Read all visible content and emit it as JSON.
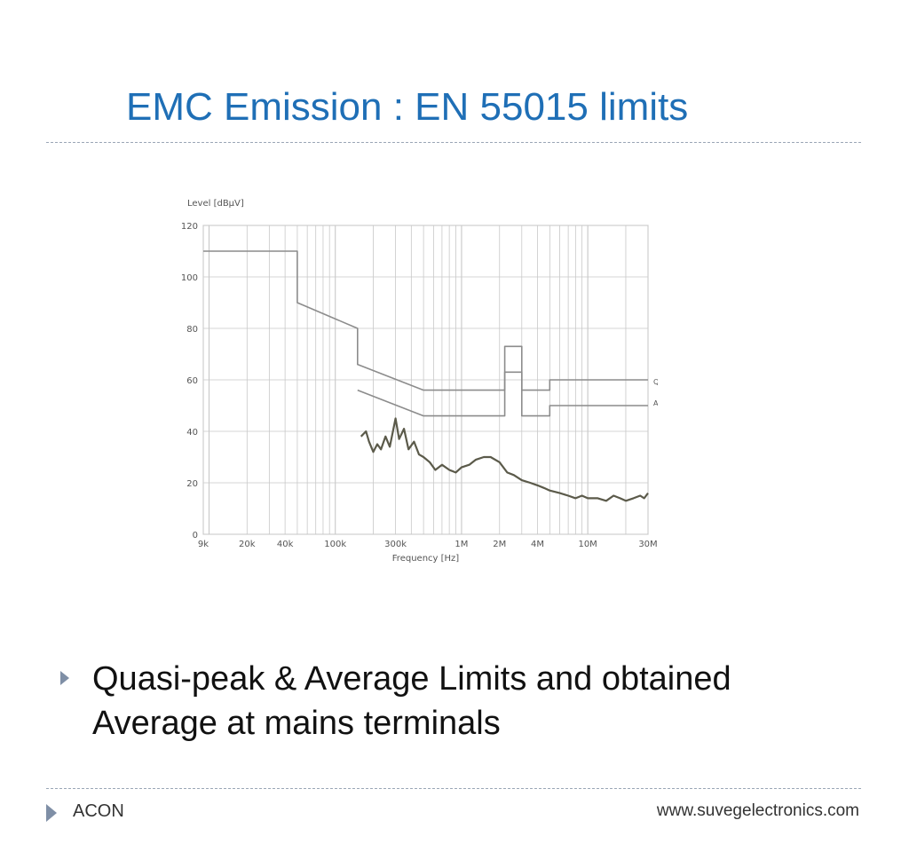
{
  "title": "EMC Emission : EN 55015 limits",
  "bullet": "Quasi-peak & Average Limits and obtained Average at mains terminals",
  "footer": {
    "left": "ACON",
    "right": "www.suvegelectronics.com"
  },
  "colors": {
    "title": "#1f6fb6",
    "limit_line": "#8c8c8c",
    "measurement": "#5b5a4a",
    "grid": "#c8c8c8",
    "bullet": "#7f8fa6"
  },
  "icons": {
    "bullet": "triangle-right-icon",
    "footer": "triangle-right-icon"
  },
  "chart_data": {
    "type": "line",
    "xscale": "log",
    "xlabel": "Frequency [Hz]",
    "ylabel": "Level [dBµV]",
    "xlim": [
      9000,
      30000000
    ],
    "ylim": [
      0,
      120
    ],
    "grid": true,
    "xticks": [
      {
        "value": 9000,
        "label": "9k"
      },
      {
        "value": 20000,
        "label": "20k"
      },
      {
        "value": 40000,
        "label": "40k"
      },
      {
        "value": 100000,
        "label": "100k"
      },
      {
        "value": 300000,
        "label": "300k"
      },
      {
        "value": 1000000,
        "label": "1M"
      },
      {
        "value": 2000000,
        "label": "2M"
      },
      {
        "value": 4000000,
        "label": "4M"
      },
      {
        "value": 10000000,
        "label": "10M"
      },
      {
        "value": 30000000,
        "label": "30M"
      }
    ],
    "yticks": [
      0,
      20,
      40,
      60,
      80,
      100,
      120
    ],
    "series": [
      {
        "name": "Q.P.LIMIT",
        "x": [
          9000,
          50000,
          50000,
          150000,
          150000,
          500000,
          2200000,
          2200000,
          3000000,
          3000000,
          5000000,
          5000000,
          30000000
        ],
        "y": [
          110,
          110,
          90,
          80,
          66,
          56,
          56,
          73,
          73,
          56,
          56,
          60,
          60
        ]
      },
      {
        "name": "A.V.LIMIT",
        "x": [
          150000,
          500000,
          2200000,
          2200000,
          3000000,
          3000000,
          5000000,
          5000000,
          30000000
        ],
        "y": [
          56,
          46,
          46,
          63,
          63,
          46,
          46,
          50,
          50
        ]
      },
      {
        "name": "",
        "x": [
          160000,
          175000,
          185000,
          200000,
          215000,
          230000,
          250000,
          270000,
          300000,
          320000,
          350000,
          380000,
          420000,
          460000,
          500000,
          560000,
          620000,
          700000,
          800000,
          900000,
          1000000,
          1150000,
          1300000,
          1500000,
          1700000,
          2000000,
          2300000,
          2600000,
          3000000,
          3500000,
          4000000,
          4500000,
          5000000,
          6000000,
          7000000,
          8000000,
          9000000,
          10000000,
          12000000,
          14000000,
          16000000,
          18000000,
          20000000,
          23000000,
          26000000,
          28000000,
          30000000
        ],
        "y": [
          38,
          40,
          36,
          32,
          35,
          33,
          38,
          34,
          45,
          37,
          41,
          33,
          36,
          31,
          30,
          28,
          25,
          27,
          25,
          24,
          26,
          27,
          29,
          30,
          30,
          28,
          24,
          23,
          21,
          20,
          19,
          18,
          17,
          16,
          15,
          14,
          15,
          14,
          14,
          13,
          15,
          14,
          13,
          14,
          15,
          14,
          16
        ]
      }
    ],
    "legend_position": "right"
  }
}
